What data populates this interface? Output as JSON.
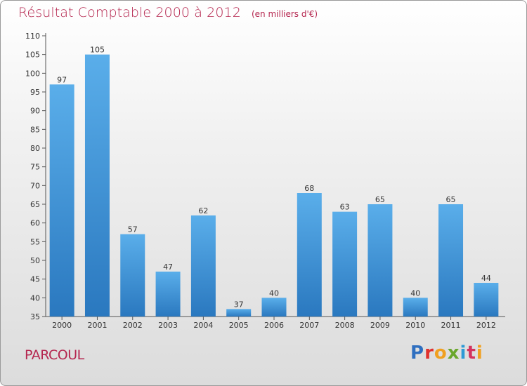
{
  "title": "Résultat Comptable 2000 à 2012",
  "subtitle": "(en milliers d'€)",
  "commune": "PARCOUL",
  "brand": {
    "letters": [
      "P",
      "r",
      "o",
      "x",
      "i",
      "t",
      "i"
    ],
    "colors": [
      "#2f6fc0",
      "#e0312d",
      "#f0a020",
      "#6aa72c",
      "#2d9ad6",
      "#d4335f",
      "#f0a020"
    ]
  },
  "colors": {
    "bar_top": "#5aaeea",
    "bar_bottom": "#2a78bf",
    "title": "#b5264f",
    "axis": "#555555"
  },
  "chart_data": {
    "type": "bar",
    "title": "Résultat Comptable 2000 à 2012",
    "subtitle": "(en milliers d'€)",
    "categories": [
      "2000",
      "2001",
      "2002",
      "2003",
      "2004",
      "2005",
      "2006",
      "2007",
      "2008",
      "2009",
      "2010",
      "2011",
      "2012"
    ],
    "values": [
      97,
      105,
      57,
      47,
      62,
      37,
      40,
      68,
      63,
      65,
      40,
      65,
      44
    ],
    "ylim": [
      35,
      110
    ],
    "yticks": [
      35,
      40,
      45,
      50,
      55,
      60,
      65,
      70,
      75,
      80,
      85,
      90,
      95,
      100,
      105,
      110
    ],
    "grid": false,
    "legend": "none"
  }
}
